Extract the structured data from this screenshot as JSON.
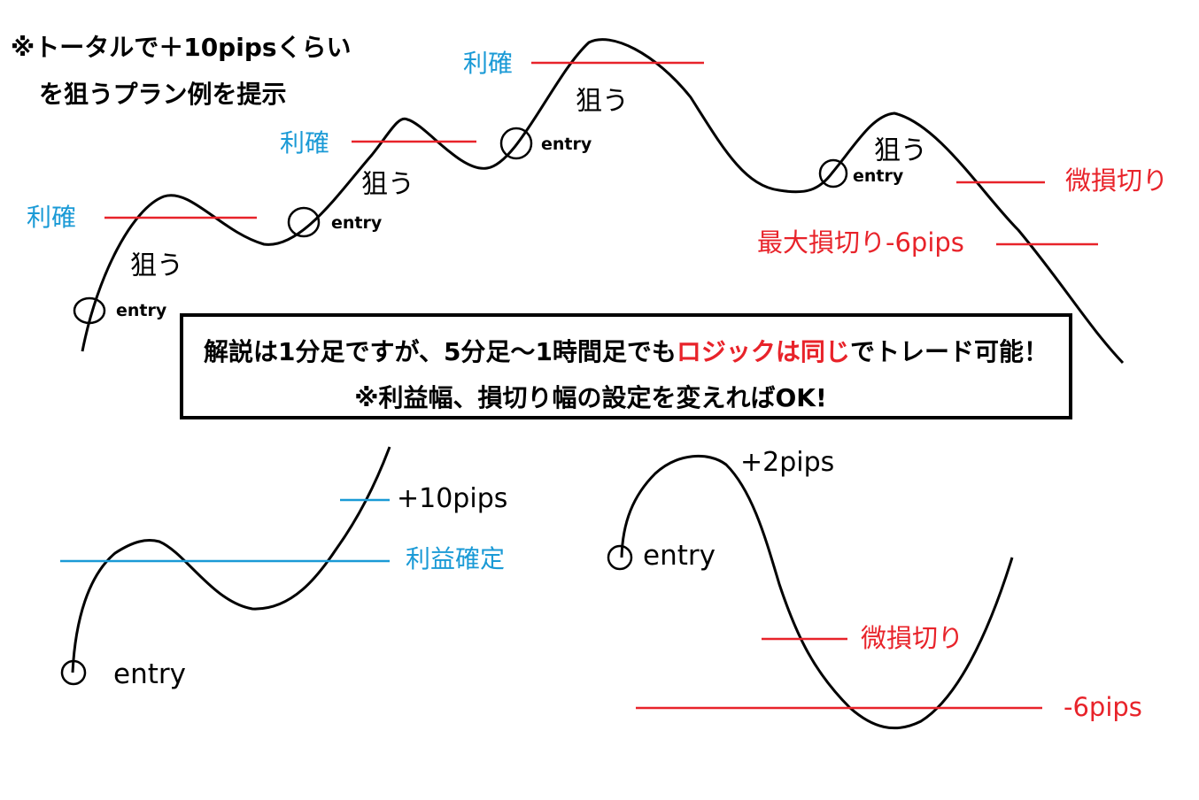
{
  "title": {
    "line1": "※トータルで＋10pipsくらい",
    "line2": "を狙うプラン例を提示"
  },
  "labels": {
    "take_profit": "利確",
    "aim": "狙う",
    "entry": "entry",
    "small_loss_cut": "微損切り",
    "max_loss_cut": "最大損切り-6pips",
    "plus_10": "+10pips",
    "profit_confirmed": "利益確定",
    "plus_2": "+2pips",
    "minus_6": "-6pips"
  },
  "note": {
    "line1_part1": "解説は1分足ですが、5分足～1時間足でも",
    "line1_highlight": "ロジックは同じ",
    "line1_part2": "でトレード可能！",
    "line2": "※利益幅、損切り幅の設定を変えればOK!"
  },
  "colors": {
    "profit_line": "#1a9ad6",
    "loss_line": "#e8232a",
    "price_curve": "#000000"
  }
}
